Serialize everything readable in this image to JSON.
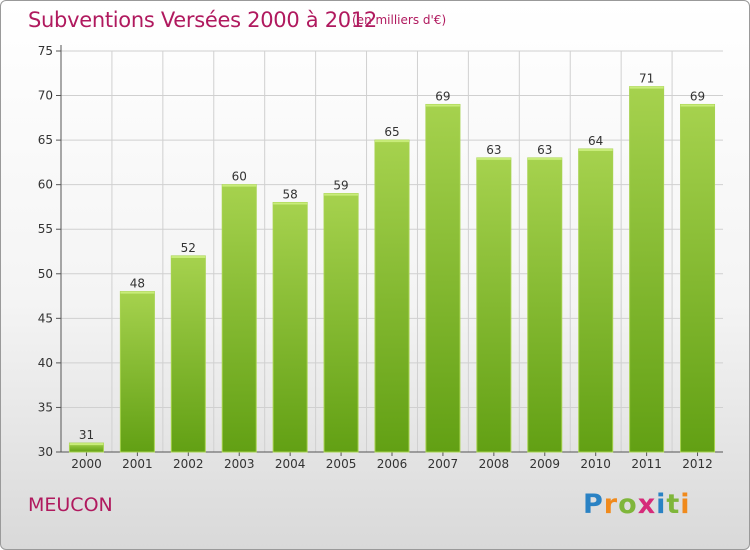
{
  "title": "Subventions Versées 2000 à 2012",
  "subtitle": "(en milliers d'€)",
  "place": "MEUCON",
  "logo": {
    "text": "Proxiti",
    "letters": [
      {
        "ch": "P",
        "color": "#2a82c4"
      },
      {
        "ch": "r",
        "color": "#f08a1c"
      },
      {
        "ch": "o",
        "color": "#7fb63a"
      },
      {
        "ch": "x",
        "color": "#d62a7a"
      },
      {
        "ch": "i",
        "color": "#2a82c4"
      },
      {
        "ch": "t",
        "color": "#7fb63a"
      },
      {
        "ch": "i",
        "color": "#f08a1c"
      }
    ]
  },
  "colors": {
    "text": "#b0195e",
    "bar_light": "#a6d24e",
    "bar_dark": "#62a014",
    "grid": "#d0d0d0"
  },
  "chart_data": {
    "type": "bar",
    "categories": [
      "2000",
      "2001",
      "2002",
      "2003",
      "2004",
      "2005",
      "2006",
      "2007",
      "2008",
      "2009",
      "2010",
      "2011",
      "2012"
    ],
    "values": [
      31,
      48,
      52,
      60,
      58,
      59,
      65,
      69,
      63,
      63,
      64,
      71,
      69
    ],
    "ylim": [
      30,
      75
    ],
    "yticks": [
      30,
      35,
      40,
      45,
      50,
      55,
      60,
      65,
      70,
      75
    ],
    "grid": true,
    "data_labels": true
  }
}
